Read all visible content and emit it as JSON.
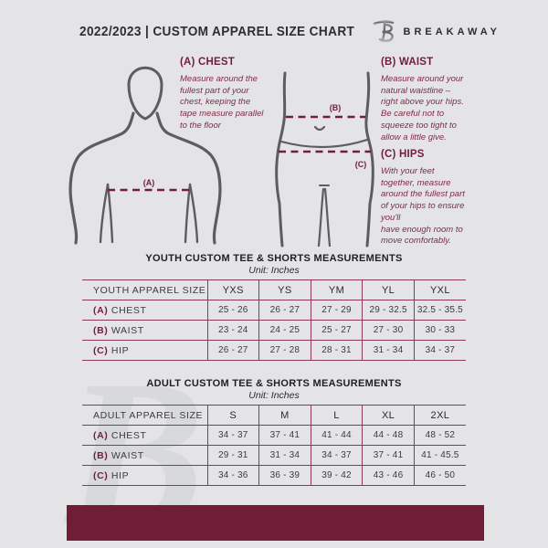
{
  "header": {
    "title": "2022/2023  |  CUSTOM APPAREL SIZE CHART",
    "brand": "BREAKAWAY",
    "logo_glyph": "B"
  },
  "guide": {
    "chest": {
      "heading": "(A) CHEST",
      "marker": "(A)",
      "body": "Measure around the\nfullest part of your\nchest, keeping the\ntape measure parallel\nto the floor"
    },
    "waist": {
      "heading": "(B) WAIST",
      "marker": "(B)",
      "body": "Measure around your\nnatural waistline –\nright above your hips.\nBe careful not to\nsqueeze too tight to\nallow a little give."
    },
    "hips": {
      "heading": "(C) HIPS",
      "marker": "(C)",
      "body": "With your feet\ntogether, measure\naround the fullest part\nof your hips to ensure\nyou'll\nhave enough room to\nmove comfortably."
    }
  },
  "tables": [
    {
      "title": "YOUTH CUSTOM TEE & SHORTS MEASUREMENTS",
      "unit": "Unit: Inches",
      "header_row": [
        "YOUTH APPAREL SIZE",
        "YXS",
        "YS",
        "YM",
        "YL",
        "YXL"
      ],
      "rows": [
        {
          "prefix": "(A)",
          "label": "CHEST",
          "values": [
            "25 - 26",
            "26 - 27",
            "27 - 29",
            "29 - 32.5",
            "32.5 - 35.5"
          ]
        },
        {
          "prefix": "(B)",
          "label": "WAIST",
          "values": [
            "23 - 24",
            "24 - 25",
            "25 - 27",
            "27 - 30",
            "30 - 33"
          ]
        },
        {
          "prefix": "(C)",
          "label": "HIP",
          "values": [
            "26 - 27",
            "27 - 28",
            "28 - 31",
            "31 - 34",
            "34 - 37"
          ]
        }
      ]
    },
    {
      "title": "ADULT CUSTOM TEE & SHORTS MEASUREMENTS",
      "unit": "Unit: Inches",
      "header_row": [
        "ADULT APPAREL SIZE",
        "S",
        "M",
        "L",
        "XL",
        "2XL"
      ],
      "rows": [
        {
          "prefix": "(A)",
          "label": "CHEST",
          "values": [
            "34 - 37",
            "37 - 41",
            "41 - 44",
            "44 - 48",
            "48 - 52"
          ]
        },
        {
          "prefix": "(B)",
          "label": "WAIST",
          "values": [
            "29 - 31",
            "31 - 34",
            "34 - 37",
            "37 - 41",
            "41 - 45.5"
          ]
        },
        {
          "prefix": "(C)",
          "label": "HIP",
          "values": [
            "34 - 36",
            "36 - 39",
            "39 - 42",
            "43 - 46",
            "46 - 50"
          ]
        }
      ]
    }
  ],
  "watermark_glyph": "B",
  "colors": {
    "accent": "#721d3b",
    "body_maroon": "#7d2c47",
    "footer": "#701d36",
    "table_line": "#8a3a55",
    "figure_stroke": "#5d5d5f",
    "background": "#e4e4e6"
  }
}
